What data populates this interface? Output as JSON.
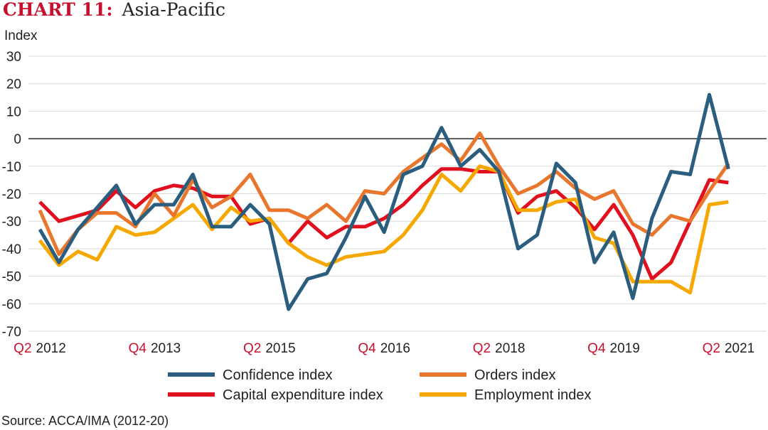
{
  "chart_title": {
    "lead": "CHART 11:",
    "rest": "Asia-Pacific"
  },
  "source": "Source: ACCA/IMA (2012-20)",
  "colors": {
    "title_lead": "#c8102e",
    "quarter_label": "#c8102e",
    "year_label": "#222222",
    "grid": "#d9d9d9",
    "zero_line": "#000000"
  },
  "chart_data": {
    "type": "line",
    "ylabel": "Index",
    "ylim": [
      -70,
      30
    ],
    "yticks": [
      30,
      20,
      10,
      0,
      -10,
      -20,
      -30,
      -40,
      -50,
      -60,
      -70
    ],
    "grid": true,
    "legend_position": "bottom",
    "x_periods": [
      "Q2 2012",
      "Q3 2012",
      "Q4 2012",
      "Q1 2013",
      "Q2 2013",
      "Q3 2013",
      "Q4 2013",
      "Q1 2014",
      "Q2 2014",
      "Q3 2014",
      "Q4 2014",
      "Q1 2015",
      "Q2 2015",
      "Q3 2015",
      "Q4 2015",
      "Q1 2016",
      "Q2 2016",
      "Q3 2016",
      "Q4 2016",
      "Q1 2017",
      "Q2 2017",
      "Q3 2017",
      "Q4 2017",
      "Q1 2018",
      "Q2 2018",
      "Q3 2018",
      "Q4 2018",
      "Q1 2019",
      "Q2 2019",
      "Q3 2019",
      "Q4 2019",
      "Q1 2020",
      "Q2 2020",
      "Q3 2020",
      "Q4 2020",
      "Q1 2021",
      "Q2 2021",
      "Q3 2021"
    ],
    "x_tick_labels": [
      {
        "index": 0,
        "quarter": "Q2",
        "year": "2012"
      },
      {
        "index": 6,
        "quarter": "Q4",
        "year": "2013"
      },
      {
        "index": 12,
        "quarter": "Q2",
        "year": "2015"
      },
      {
        "index": 18,
        "quarter": "Q4",
        "year": "2016"
      },
      {
        "index": 24,
        "quarter": "Q2",
        "year": "2018"
      },
      {
        "index": 30,
        "quarter": "Q4",
        "year": "2019"
      },
      {
        "index": 36,
        "quarter": "Q2",
        "year": "2021"
      }
    ],
    "series": [
      {
        "name": "Confidence index",
        "color": "#2b5e7e",
        "values": [
          -33,
          -45,
          -33,
          -25,
          -17,
          -31,
          -24,
          -24,
          -13,
          -32,
          -32,
          -24,
          -31,
          -62,
          -51,
          -49,
          -36,
          -21,
          -34,
          -13,
          -10,
          4,
          -10,
          -4,
          -12,
          -40,
          -35,
          -9,
          -16,
          -45,
          -34,
          -58,
          -29,
          -12,
          -13,
          16,
          -11,
          null
        ]
      },
      {
        "name": "Orders index",
        "color": "#e8762c",
        "values": [
          -26,
          -42,
          -33,
          -27,
          -27,
          -32,
          -20,
          -28,
          -15,
          -25,
          -21,
          -13,
          -26,
          -26,
          -29,
          -24,
          -30,
          -19,
          -20,
          -12,
          -7,
          -2,
          -8,
          2,
          -10,
          -20,
          -17,
          -12,
          -18,
          -22,
          -19,
          -31,
          -35,
          -28,
          -30,
          -19,
          -9,
          null
        ]
      },
      {
        "name": "Capital expenditure index",
        "color": "#e0101e",
        "values": [
          -23,
          -30,
          -28,
          -26,
          -19,
          -25,
          -19,
          -17,
          -18,
          -21,
          -21,
          -31,
          -29,
          -38,
          -30,
          -36,
          -32,
          -32,
          -29,
          -24,
          -17,
          -11,
          -11,
          -12,
          -12,
          -27,
          -21,
          -19,
          -25,
          -33,
          -24,
          -35,
          -51,
          -45,
          -30,
          -15,
          -16,
          null
        ]
      },
      {
        "name": "Employment index",
        "color": "#f6a800",
        "values": [
          -37,
          -46,
          -41,
          -44,
          -32,
          -35,
          -34,
          -29,
          -24,
          -33,
          -25,
          -30,
          -29,
          -38,
          -43,
          -46,
          -43,
          -42,
          -41,
          -35,
          -26,
          -13,
          -19,
          -10,
          -12,
          -26,
          -26,
          -23,
          -22,
          -36,
          -38,
          -52,
          -52,
          -52,
          -56,
          -24,
          -23,
          null
        ]
      }
    ]
  }
}
